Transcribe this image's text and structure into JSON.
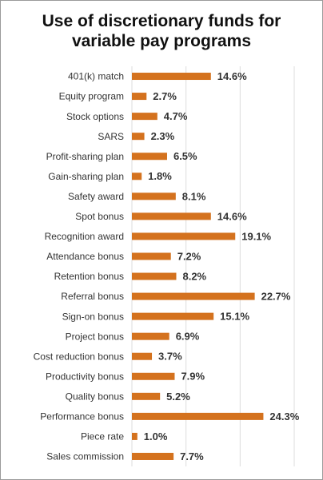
{
  "chart_data": {
    "type": "hbar",
    "title": "Use of discretionary funds for variable pay programs",
    "categories": [
      "401(k) match",
      "Equity program",
      "Stock options",
      "SARS",
      "Profit-sharing plan",
      "Gain-sharing plan",
      "Safety award",
      "Spot bonus",
      "Recognition award",
      "Attendance bonus",
      "Retention bonus",
      "Referral bonus",
      "Sign-on bonus",
      "Project bonus",
      "Cost reduction bonus",
      "Productivity bonus",
      "Quality bonus",
      "Performance bonus",
      "Piece rate",
      "Sales commission"
    ],
    "values": [
      14.6,
      2.7,
      4.7,
      2.3,
      6.5,
      1.8,
      8.1,
      14.6,
      19.1,
      7.2,
      8.2,
      22.7,
      15.1,
      6.9,
      3.7,
      7.9,
      5.2,
      24.3,
      1.0,
      7.7
    ],
    "value_labels": [
      "14.6%",
      "2.7%",
      "4.7%",
      "2.3%",
      "6.5%",
      "1.8%",
      "8.1%",
      "14.6%",
      "19.1%",
      "7.2%",
      "8.2%",
      "22.7%",
      "15.1%",
      "6.9%",
      "3.7%",
      "7.9%",
      "5.2%",
      "24.3%",
      "1.0%",
      "7.7%"
    ],
    "color": "#d4721e",
    "xlim": [
      0,
      30
    ],
    "xticks": [
      0,
      10,
      20,
      30
    ],
    "grid": true
  }
}
